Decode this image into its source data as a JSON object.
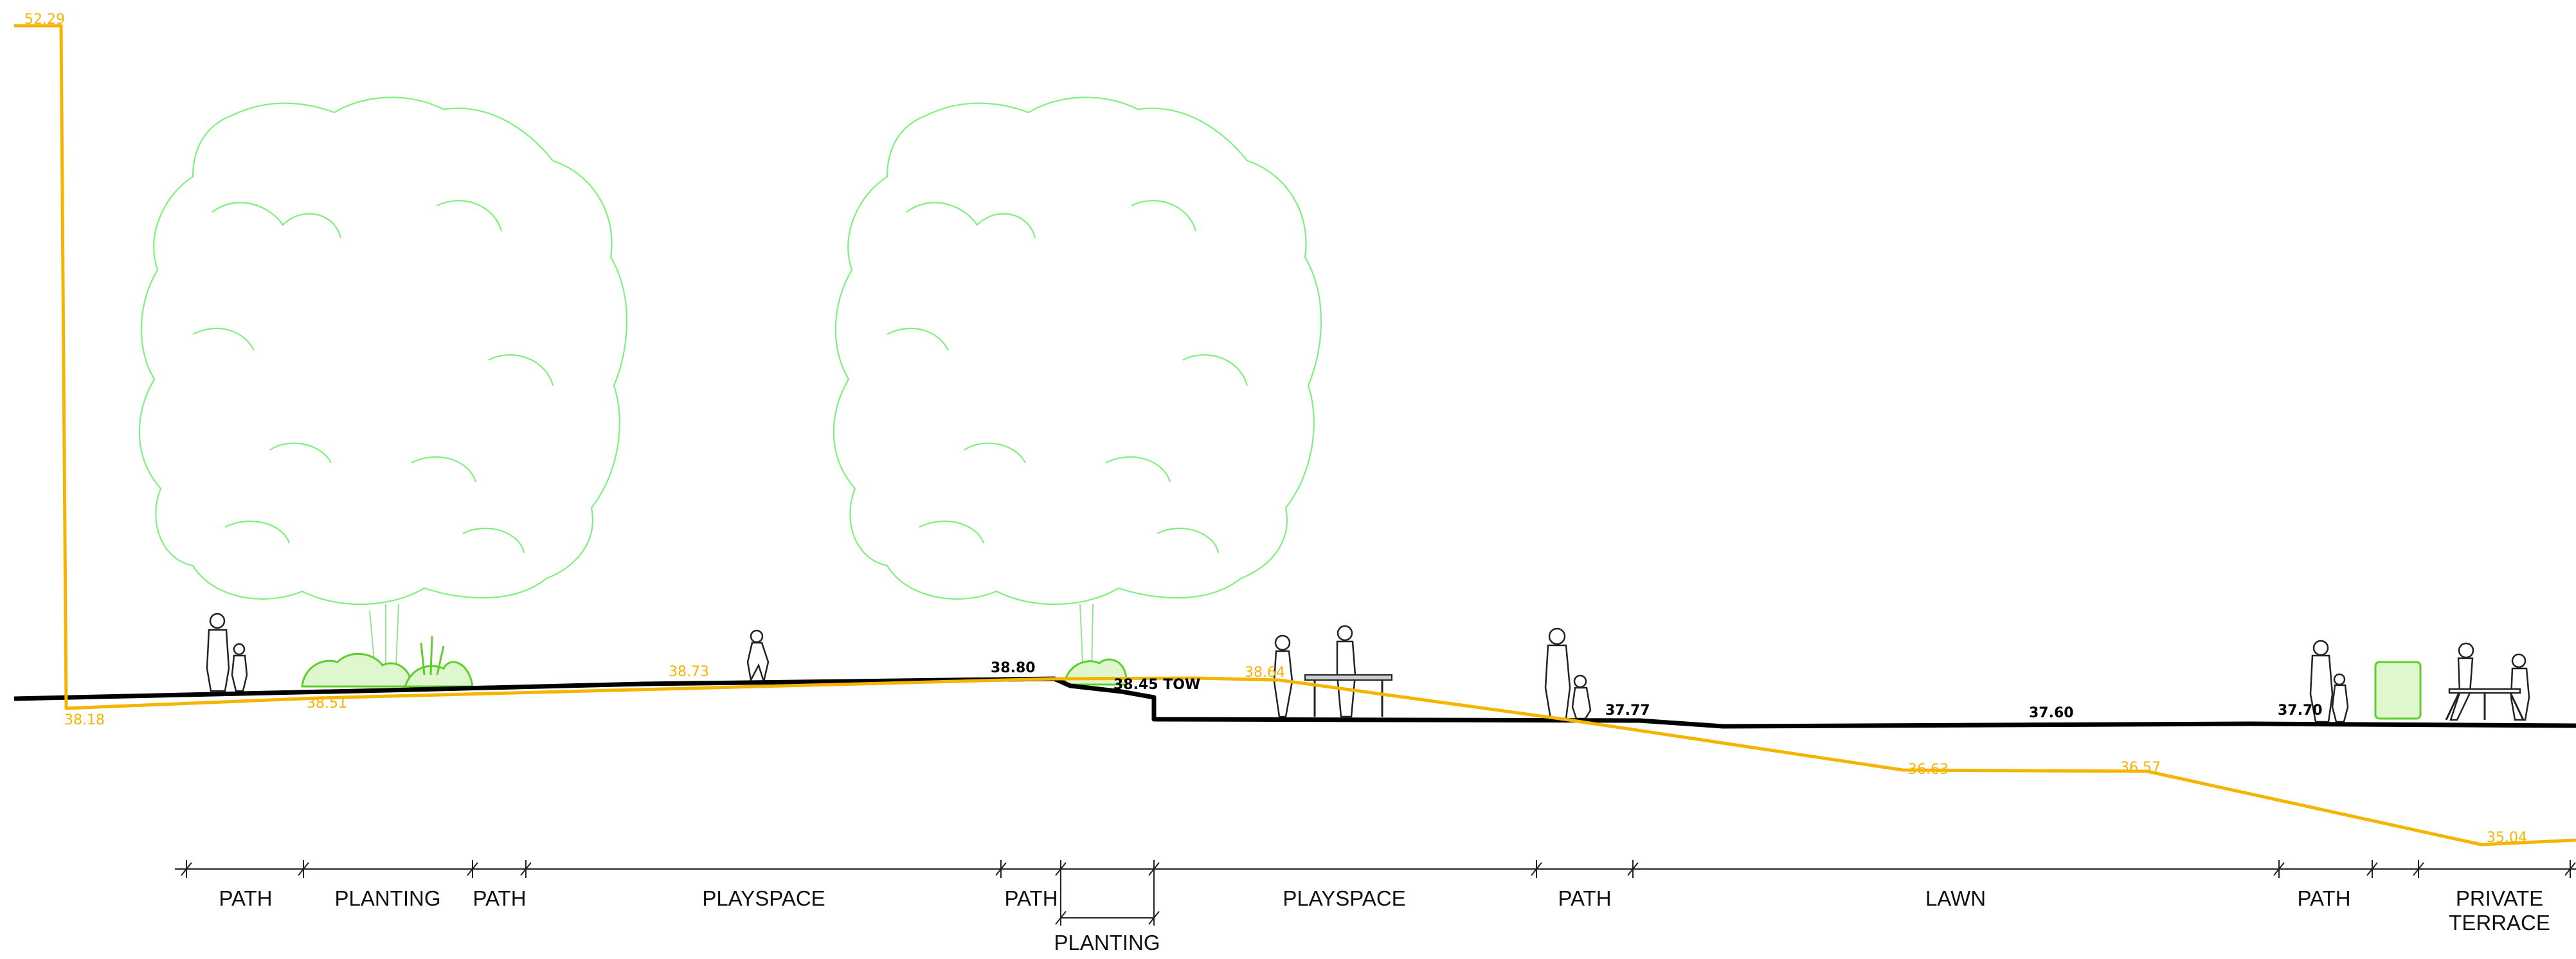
{
  "elevations": {
    "existing": [
      "52.29",
      "38.18",
      "38.51",
      "38.73",
      "38.64",
      "36.63",
      "36.57",
      "35.04"
    ],
    "proposed": [
      "38.80",
      "38.45 TOW",
      "37.77",
      "37.60",
      "37.70"
    ]
  },
  "zones": [
    {
      "label": "PATH"
    },
    {
      "label": "PLANTING"
    },
    {
      "label": "PATH"
    },
    {
      "label": "PLAYSPACE"
    },
    {
      "label": "PATH"
    },
    {
      "label": "PLANTING"
    },
    {
      "label": "PLAYSPACE"
    },
    {
      "label": "PATH"
    },
    {
      "label": "LAWN"
    },
    {
      "label": "PATH"
    },
    {
      "label": "PRIVATE"
    },
    {
      "label": "TERRACE"
    }
  ],
  "colors": {
    "existing_ground": "#f5b400",
    "proposed_ground": "#000000",
    "trees": "#7ff07f",
    "planting": "#5ccf2b"
  },
  "icons": [
    "deciduous-tree-icon",
    "shrub-icon",
    "person-icon",
    "child-icon",
    "table-tennis-icon",
    "picnic-table-icon"
  ]
}
